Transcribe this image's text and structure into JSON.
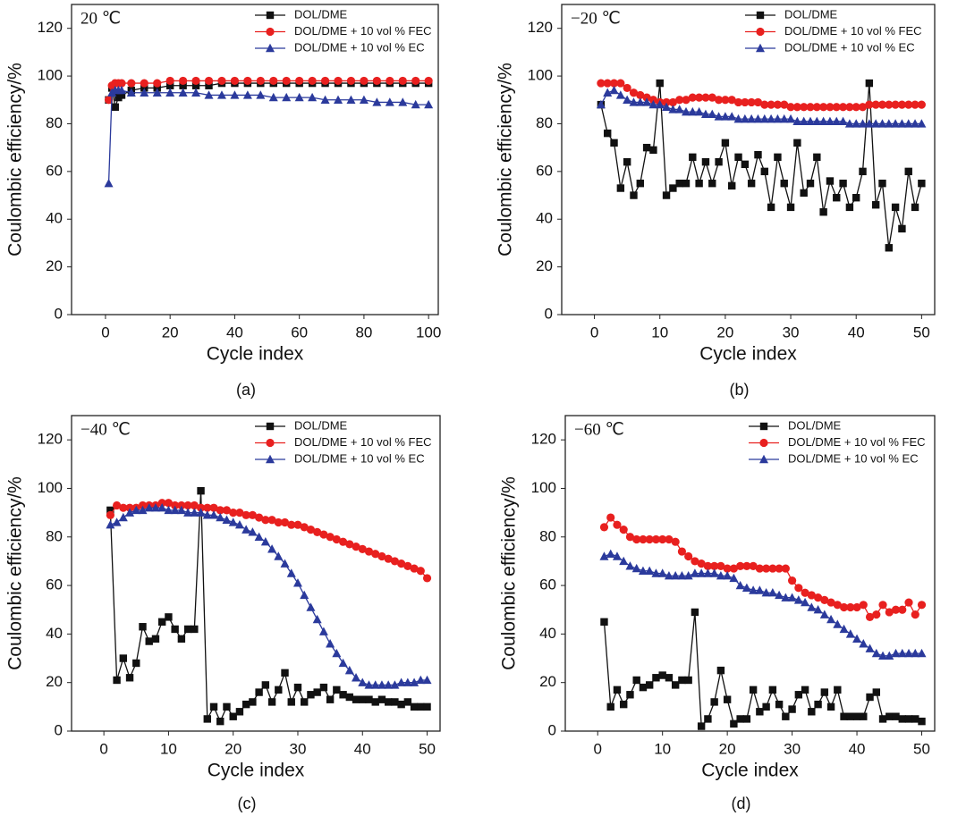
{
  "chart_data": [
    {
      "type": "line",
      "title": "20 ℃",
      "caption": "(a)",
      "xlabel": "Cycle index",
      "ylabel": "Coulombic efficiency/%",
      "xlim": [
        -10.5,
        103
      ],
      "ylim": [
        0,
        130
      ],
      "xticks": [
        0,
        20,
        40,
        60,
        80,
        100
      ],
      "yticks": [
        0,
        20,
        40,
        60,
        80,
        100,
        120
      ],
      "legend": "upper right",
      "x": [
        1,
        2,
        3,
        4,
        5,
        8,
        12,
        16,
        20,
        24,
        28,
        32,
        36,
        40,
        44,
        48,
        52,
        56,
        60,
        64,
        68,
        72,
        76,
        80,
        84,
        88,
        92,
        96,
        100
      ],
      "series": [
        {
          "name": "DOL/DME",
          "color": "#111111",
          "marker": "square",
          "values": [
            90,
            95,
            87,
            91,
            92,
            94,
            95,
            95,
            96,
            96,
            96,
            96,
            97,
            97,
            97,
            97,
            97,
            97,
            97,
            97,
            97,
            97,
            97,
            97,
            97,
            97,
            97,
            97,
            97
          ]
        },
        {
          "name": "DOL/DME + 10 vol % FEC",
          "color": "#e8201f",
          "marker": "circle",
          "values": [
            90,
            96,
            97,
            97,
            97,
            97,
            97,
            97,
            98,
            98,
            98,
            98,
            98,
            98,
            98,
            98,
            98,
            98,
            98,
            98,
            98,
            98,
            98,
            98,
            98,
            98,
            98,
            98,
            98
          ]
        },
        {
          "name": "DOL/DME + 10 vol % EC",
          "color": "#2b3a9c",
          "marker": "triangle",
          "values": [
            55,
            93,
            94,
            94,
            94,
            93,
            93,
            93,
            93,
            93,
            93,
            92,
            92,
            92,
            92,
            92,
            91,
            91,
            91,
            91,
            90,
            90,
            90,
            90,
            89,
            89,
            89,
            88,
            88
          ]
        }
      ]
    },
    {
      "type": "line",
      "title": "−20 ℃",
      "caption": "(b)",
      "xlabel": "Cycle index",
      "ylabel": "Coulombic efficiency/%",
      "xlim": [
        -5,
        52
      ],
      "ylim": [
        0,
        130
      ],
      "xticks": [
        0,
        10,
        20,
        30,
        40,
        50
      ],
      "yticks": [
        0,
        20,
        40,
        60,
        80,
        100,
        120
      ],
      "legend": "upper right",
      "x": [
        1,
        2,
        3,
        4,
        5,
        6,
        7,
        8,
        9,
        10,
        11,
        12,
        13,
        14,
        15,
        16,
        17,
        18,
        19,
        20,
        21,
        22,
        23,
        24,
        25,
        26,
        27,
        28,
        29,
        30,
        31,
        32,
        33,
        34,
        35,
        36,
        37,
        38,
        39,
        40,
        41,
        42,
        43,
        44,
        45,
        46,
        47,
        48,
        49,
        50
      ],
      "series": [
        {
          "name": "DOL/DME",
          "color": "#111111",
          "marker": "square",
          "values": [
            88,
            76,
            72,
            53,
            64,
            50,
            55,
            70,
            69,
            97,
            50,
            53,
            55,
            55,
            66,
            55,
            64,
            55,
            64,
            72,
            54,
            66,
            63,
            55,
            67,
            60,
            45,
            66,
            55,
            45,
            72,
            51,
            55,
            66,
            43,
            56,
            49,
            55,
            45,
            49,
            60,
            97,
            46,
            55,
            28,
            45,
            36,
            60,
            45,
            55
          ]
        },
        {
          "name": "DOL/DME + 10 vol % FEC",
          "color": "#e8201f",
          "marker": "circle",
          "values": [
            97,
            97,
            97,
            97,
            95,
            93,
            92,
            91,
            90,
            89,
            89,
            89,
            90,
            90,
            91,
            91,
            91,
            91,
            90,
            90,
            90,
            89,
            89,
            89,
            89,
            88,
            88,
            88,
            88,
            87,
            87,
            87,
            87,
            87,
            87,
            87,
            87,
            87,
            87,
            87,
            87,
            88,
            88,
            88,
            88,
            88,
            88,
            88,
            88,
            88
          ]
        },
        {
          "name": "DOL/DME + 10 vol % EC",
          "color": "#2b3a9c",
          "marker": "triangle",
          "values": [
            88,
            93,
            94,
            92,
            90,
            89,
            89,
            89,
            88,
            88,
            87,
            86,
            86,
            85,
            85,
            85,
            84,
            84,
            83,
            83,
            83,
            82,
            82,
            82,
            82,
            82,
            82,
            82,
            82,
            82,
            81,
            81,
            81,
            81,
            81,
            81,
            81,
            81,
            80,
            80,
            80,
            80,
            80,
            80,
            80,
            80,
            80,
            80,
            80,
            80
          ]
        }
      ]
    },
    {
      "type": "line",
      "title": "−40 ℃",
      "caption": "(c)",
      "xlabel": "Cycle index",
      "ylabel": "Coulombic efficiency/%",
      "xlim": [
        -5,
        52
      ],
      "ylim": [
        0,
        130
      ],
      "xticks": [
        0,
        10,
        20,
        30,
        40,
        50
      ],
      "yticks": [
        0,
        20,
        40,
        60,
        80,
        100,
        120
      ],
      "legend": "upper right",
      "x": [
        1,
        2,
        3,
        4,
        5,
        6,
        7,
        8,
        9,
        10,
        11,
        12,
        13,
        14,
        15,
        16,
        17,
        18,
        19,
        20,
        21,
        22,
        23,
        24,
        25,
        26,
        27,
        28,
        29,
        30,
        31,
        32,
        33,
        34,
        35,
        36,
        37,
        38,
        39,
        40,
        41,
        42,
        43,
        44,
        45,
        46,
        47,
        48,
        49,
        50
      ],
      "series": [
        {
          "name": "DOL/DME",
          "color": "#111111",
          "marker": "square",
          "values": [
            91,
            21,
            30,
            22,
            28,
            43,
            37,
            38,
            45,
            47,
            42,
            38,
            42,
            42,
            99,
            5,
            10,
            4,
            10,
            6,
            8,
            11,
            12,
            16,
            19,
            12,
            17,
            24,
            12,
            18,
            12,
            15,
            16,
            18,
            13,
            17,
            15,
            14,
            13,
            13,
            13,
            12,
            13,
            12,
            12,
            11,
            12,
            10,
            10,
            10
          ]
        },
        {
          "name": "DOL/DME + 10 vol %  FEC",
          "color": "#e8201f",
          "marker": "circle",
          "values": [
            89,
            93,
            92,
            92,
            92,
            93,
            93,
            93,
            94,
            94,
            93,
            93,
            93,
            93,
            92,
            92,
            92,
            91,
            91,
            90,
            90,
            89,
            89,
            88,
            87,
            87,
            86,
            86,
            85,
            85,
            84,
            83,
            82,
            81,
            80,
            79,
            78,
            77,
            76,
            75,
            74,
            73,
            72,
            71,
            70,
            69,
            68,
            67,
            66,
            63
          ]
        },
        {
          "name": "DOL/DME + 10 vol %  EC",
          "color": "#2b3a9c",
          "marker": "triangle",
          "values": [
            85,
            86,
            88,
            90,
            91,
            91,
            92,
            92,
            92,
            91,
            91,
            91,
            90,
            90,
            90,
            89,
            89,
            88,
            87,
            86,
            85,
            83,
            82,
            80,
            78,
            75,
            72,
            69,
            65,
            61,
            56,
            51,
            46,
            41,
            36,
            32,
            28,
            25,
            22,
            20,
            19,
            19,
            19,
            19,
            19,
            20,
            20,
            20,
            21,
            21
          ]
        }
      ]
    },
    {
      "type": "line",
      "title": "−60 ℃",
      "caption": "(d)",
      "xlabel": "Cycle index",
      "ylabel": "Coulombic efficiency/%",
      "xlim": [
        -5,
        52
      ],
      "ylim": [
        0,
        130
      ],
      "xticks": [
        0,
        10,
        20,
        30,
        40,
        50
      ],
      "yticks": [
        0,
        20,
        40,
        60,
        80,
        100,
        120
      ],
      "legend": "upper right",
      "x": [
        1,
        2,
        3,
        4,
        5,
        6,
        7,
        8,
        9,
        10,
        11,
        12,
        13,
        14,
        15,
        16,
        17,
        18,
        19,
        20,
        21,
        22,
        23,
        24,
        25,
        26,
        27,
        28,
        29,
        30,
        31,
        32,
        33,
        34,
        35,
        36,
        37,
        38,
        39,
        40,
        41,
        42,
        43,
        44,
        45,
        46,
        47,
        48,
        49,
        50
      ],
      "series": [
        {
          "name": "DOL/DME",
          "color": "#111111",
          "marker": "square",
          "values": [
            45,
            10,
            17,
            11,
            15,
            21,
            18,
            19,
            22,
            23,
            22,
            19,
            21,
            21,
            49,
            2,
            5,
            12,
            25,
            13,
            3,
            5,
            5,
            17,
            8,
            10,
            17,
            11,
            6,
            9,
            15,
            17,
            8,
            11,
            16,
            10,
            17,
            6,
            6,
            6,
            6,
            14,
            16,
            5,
            6,
            6,
            5,
            5,
            5,
            4
          ]
        },
        {
          "name": "DOL/DME + 10 vol % FEC",
          "color": "#e8201f",
          "marker": "circle",
          "values": [
            84,
            88,
            85,
            83,
            80,
            79,
            79,
            79,
            79,
            79,
            79,
            78,
            74,
            72,
            70,
            69,
            68,
            68,
            68,
            67,
            67,
            68,
            68,
            68,
            67,
            67,
            67,
            67,
            67,
            62,
            59,
            57,
            56,
            55,
            54,
            53,
            52,
            51,
            51,
            51,
            52,
            47,
            48,
            52,
            49,
            50,
            50,
            53,
            48,
            52
          ]
        },
        {
          "name": "DOL/DME + 10 vol % EC",
          "color": "#2b3a9c",
          "marker": "triangle",
          "values": [
            72,
            73,
            72,
            70,
            68,
            67,
            66,
            66,
            65,
            65,
            64,
            64,
            64,
            64,
            65,
            65,
            65,
            65,
            64,
            64,
            63,
            60,
            59,
            58,
            58,
            57,
            57,
            56,
            55,
            55,
            54,
            53,
            51,
            50,
            48,
            46,
            44,
            42,
            40,
            38,
            36,
            34,
            32,
            31,
            31,
            32,
            32,
            32,
            32,
            32
          ]
        }
      ]
    }
  ]
}
